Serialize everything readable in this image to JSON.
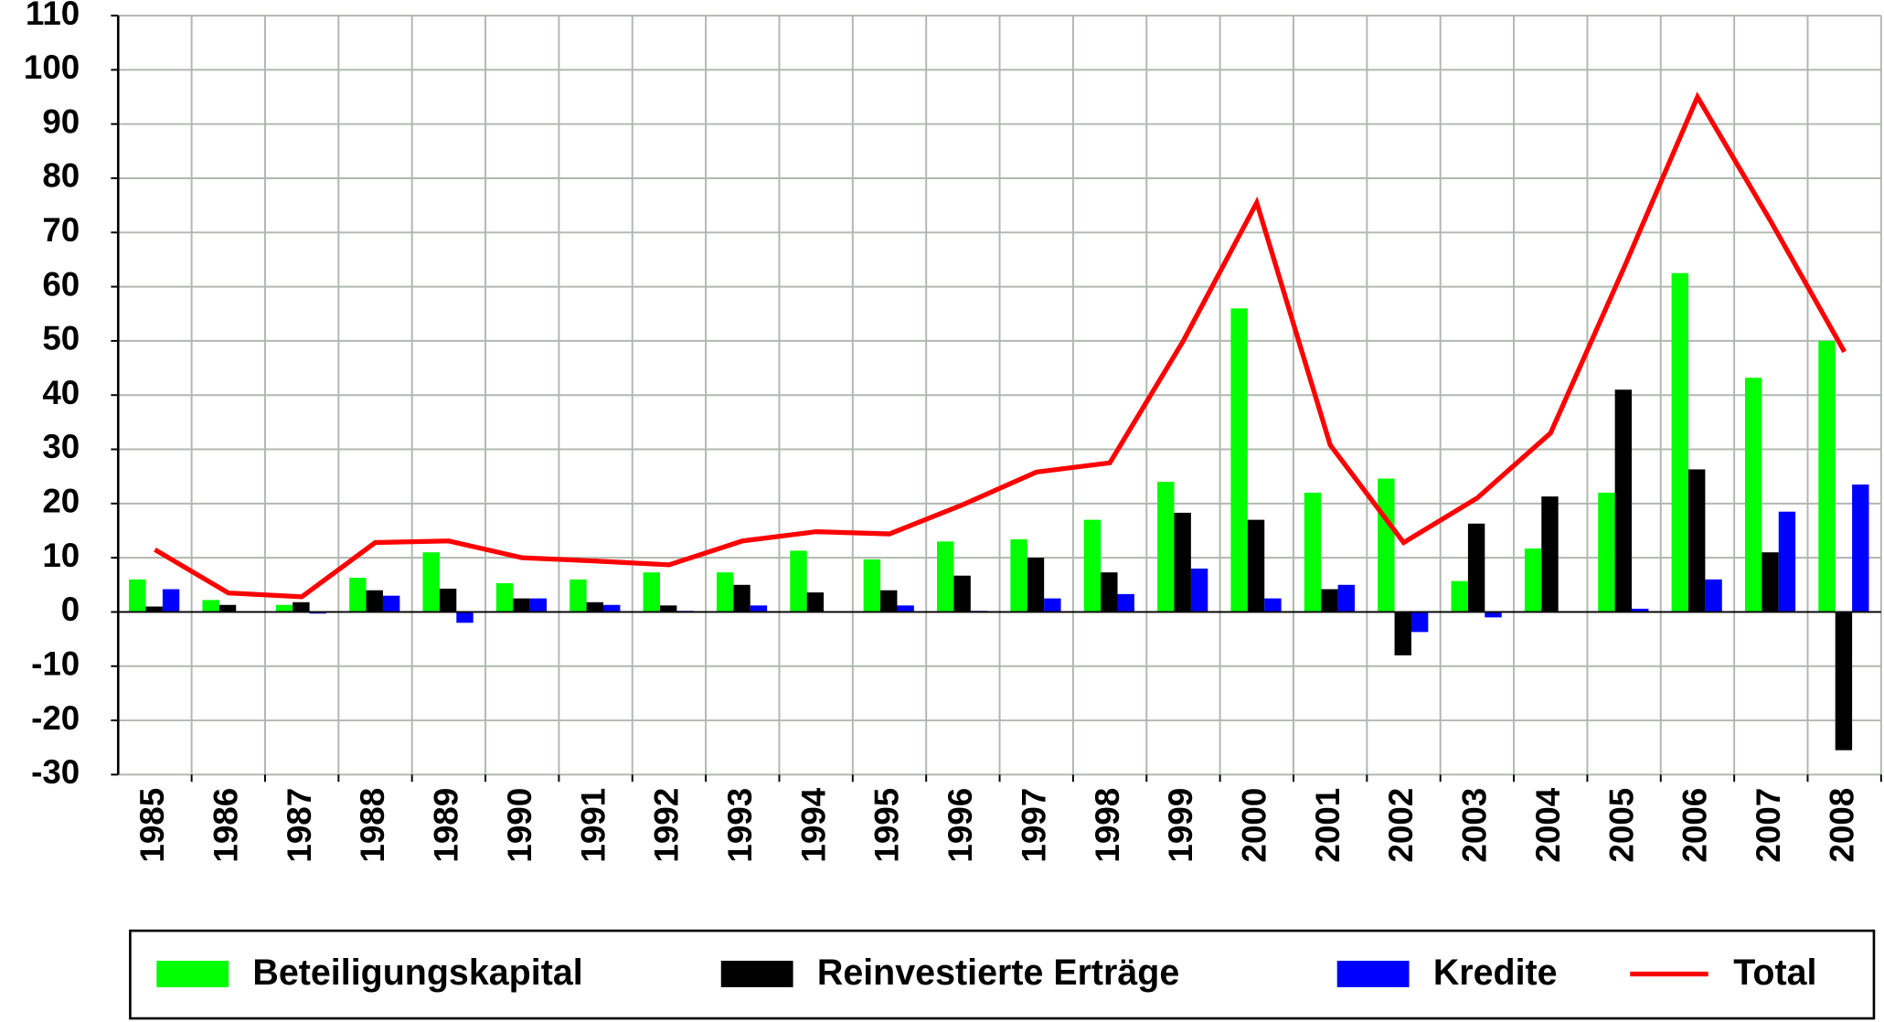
{
  "chart_data": {
    "type": "bar",
    "categories": [
      "1985",
      "1986",
      "1987",
      "1988",
      "1989",
      "1990",
      "1991",
      "1992",
      "1993",
      "1994",
      "1995",
      "1996",
      "1997",
      "1998",
      "1999",
      "2000",
      "2001",
      "2002",
      "2003",
      "2004",
      "2005",
      "2006",
      "2007",
      "2008"
    ],
    "series": [
      {
        "name": "Beteiligungskapital",
        "color": "#00ff00",
        "values": [
          6,
          2.2,
          1.3,
          6.3,
          11,
          5.3,
          6,
          7.3,
          7.3,
          11.3,
          9.7,
          13,
          13.4,
          17,
          24,
          56,
          22,
          24.6,
          5.7,
          11.7,
          22,
          62.5,
          43.2,
          50
        ]
      },
      {
        "name": "Reinvestierte Erträge",
        "color": "#000000",
        "values": [
          1,
          1.3,
          1.8,
          4,
          4.3,
          2.5,
          1.8,
          1.2,
          5,
          3.6,
          4,
          6.7,
          10,
          7.3,
          18.3,
          17,
          4.2,
          -8,
          16.3,
          21.3,
          41,
          26.3,
          11,
          -25.5
        ]
      },
      {
        "name": "Kredite",
        "color": "#0000ff",
        "values": [
          4.2,
          0,
          -0.3,
          3,
          -2,
          2.5,
          1.3,
          0.2,
          1.2,
          0,
          1.2,
          0.2,
          2.5,
          3.3,
          8,
          2.5,
          5,
          -3.7,
          -1,
          0,
          0.6,
          6,
          18.5,
          23.5
        ]
      },
      {
        "name": "Total",
        "color": "#ff0000",
        "type": "line",
        "values": [
          11.5,
          3.5,
          2.8,
          12.8,
          13.1,
          10,
          9.4,
          8.7,
          13.1,
          14.8,
          14.4,
          19.8,
          25.8,
          27.5,
          50,
          75.5,
          30.8,
          12.8,
          21,
          33,
          63.5,
          95,
          72,
          48
        ]
      }
    ],
    "ylim": [
      -30,
      110
    ],
    "yticks": [
      -30,
      -20,
      -10,
      0,
      10,
      20,
      30,
      40,
      50,
      60,
      70,
      80,
      90,
      100,
      110
    ],
    "grid": true,
    "legend": "bottom"
  }
}
